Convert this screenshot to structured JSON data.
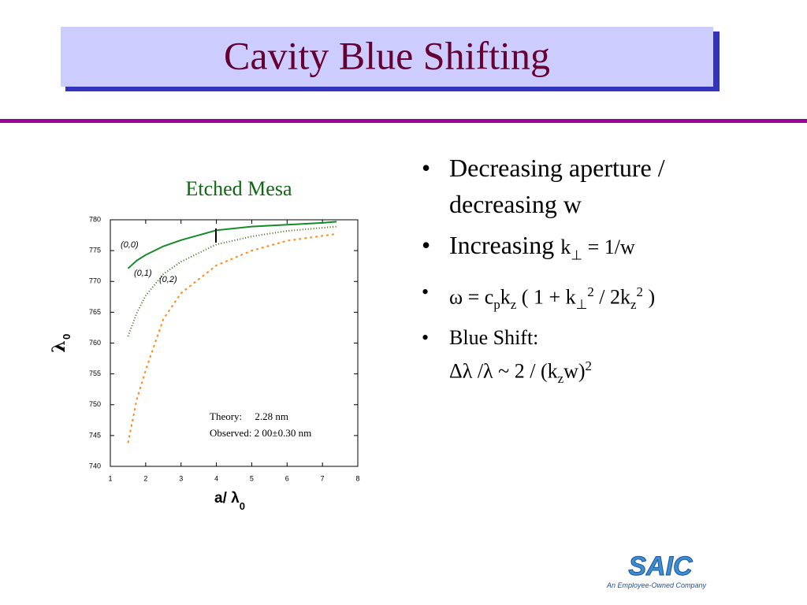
{
  "header": {
    "title": "Cavity Blue Shifting"
  },
  "chart_data": {
    "type": "line",
    "title": "Etched Mesa",
    "x_label": {
      "text": "a/ λ",
      "sub": "0"
    },
    "y_label": {
      "text": "λ",
      "sub": "0"
    },
    "x": [
      1.5,
      1.75,
      2,
      2.5,
      3,
      4,
      5,
      6,
      7,
      7.4
    ],
    "series": [
      {
        "name": "(0,0)",
        "color": "#148a2a",
        "style": "solid",
        "values": [
          772.1,
          773.4,
          774.3,
          775.7,
          776.7,
          778.3,
          778.9,
          779.2,
          779.5,
          779.7
        ]
      },
      {
        "name": "(0,1)",
        "color": "#3d6a14",
        "style": "dotted",
        "values": [
          761.1,
          764.9,
          767.7,
          771.2,
          773.2,
          776.0,
          777.3,
          778.2,
          778.7,
          778.9
        ]
      },
      {
        "name": "(0,2)",
        "color": "#ff8a1e",
        "style": "dashed",
        "values": [
          743.8,
          750.9,
          755.6,
          763.9,
          768.1,
          772.6,
          775.0,
          776.6,
          777.4,
          777.7
        ]
      }
    ],
    "xlim": [
      1,
      8
    ],
    "xticks": [
      1,
      2,
      3,
      4,
      5,
      6,
      7,
      8
    ],
    "ylim": [
      740,
      780
    ],
    "yticks": [
      740,
      745,
      750,
      755,
      760,
      765,
      770,
      775,
      780
    ],
    "annotations": [
      "Theory:     2.28 nm",
      "Observed: 2 00±0.30 nm"
    ]
  },
  "bullets": [
    [
      [
        {
          "t": "Decreasing aperture /"
        }
      ],
      [
        {
          "t": "decreasing w"
        }
      ]
    ],
    [
      [
        {
          "t": "Increasing "
        },
        {
          "t": "k",
          "s": "small"
        },
        {
          "t": "⊥",
          "s": "subsmall"
        },
        {
          "t": " = 1/w",
          "s": "small"
        }
      ]
    ],
    [
      [
        {
          "t": "ω = c"
        },
        {
          "t": "p",
          "s": "sub"
        },
        {
          "t": "k"
        },
        {
          "t": "z",
          "s": "sub"
        },
        {
          "t": " ( 1 + k"
        },
        {
          "t": "⊥",
          "s": "sub"
        },
        {
          "t": "2",
          "s": "sup"
        },
        {
          "t": " / 2k"
        },
        {
          "t": "z",
          "s": "sub"
        },
        {
          "t": "2",
          "s": "sup"
        },
        {
          "t": " )"
        }
      ]
    ],
    [
      [
        {
          "t": "Blue Shift:"
        }
      ],
      [
        {
          "t": "Δλ /λ ~ 2 / (k"
        },
        {
          "t": "z",
          "s": "sub"
        },
        {
          "t": "w)"
        },
        {
          "t": "2",
          "s": "sup"
        }
      ]
    ]
  ],
  "logo": {
    "name": "SAIC",
    "tagline": "An Employee-Owned Company"
  }
}
